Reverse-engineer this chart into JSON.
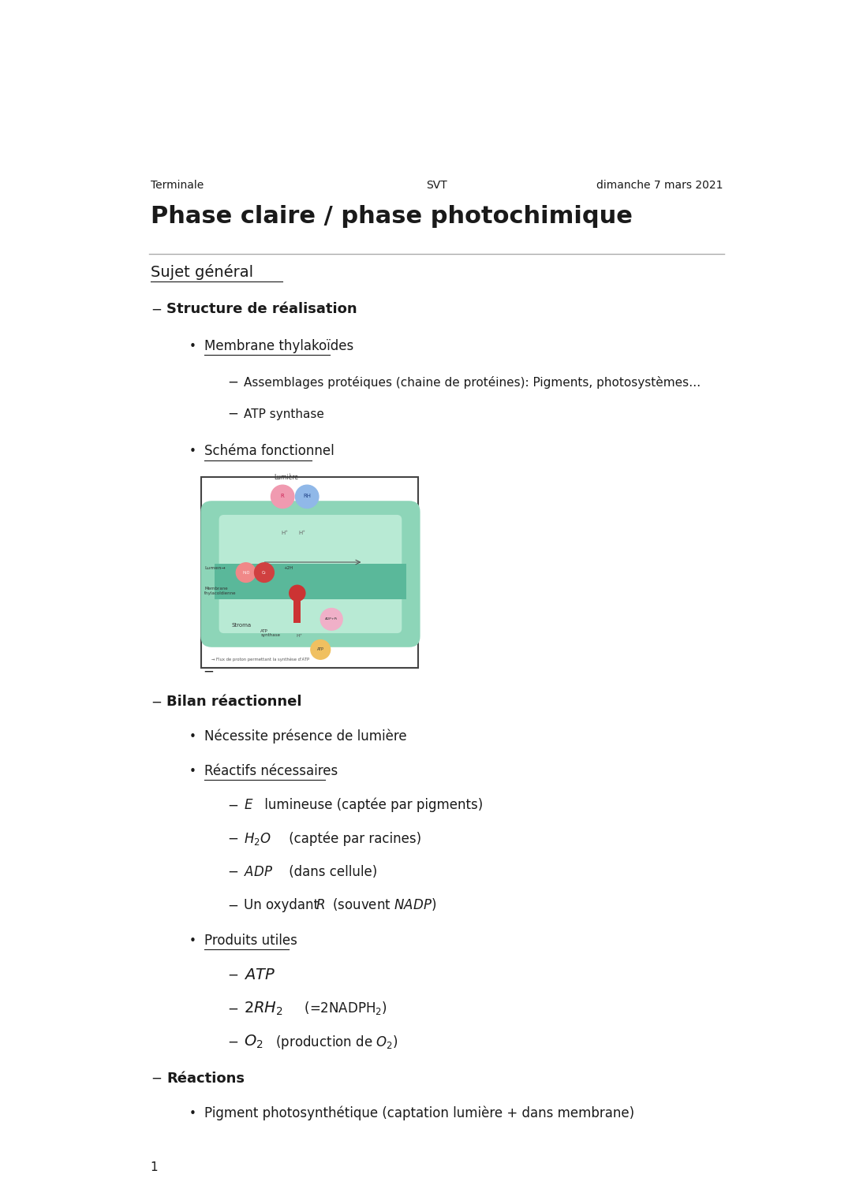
{
  "header_left": "Terminale",
  "header_center": "SVT",
  "header_right": "dimanche 7 mars 2021",
  "title": "Phase claire / phase photochimique",
  "section": "Sujet général",
  "bg_color": "#ffffff",
  "text_color": "#1a1a1a",
  "line_color": "#aaaaaa"
}
